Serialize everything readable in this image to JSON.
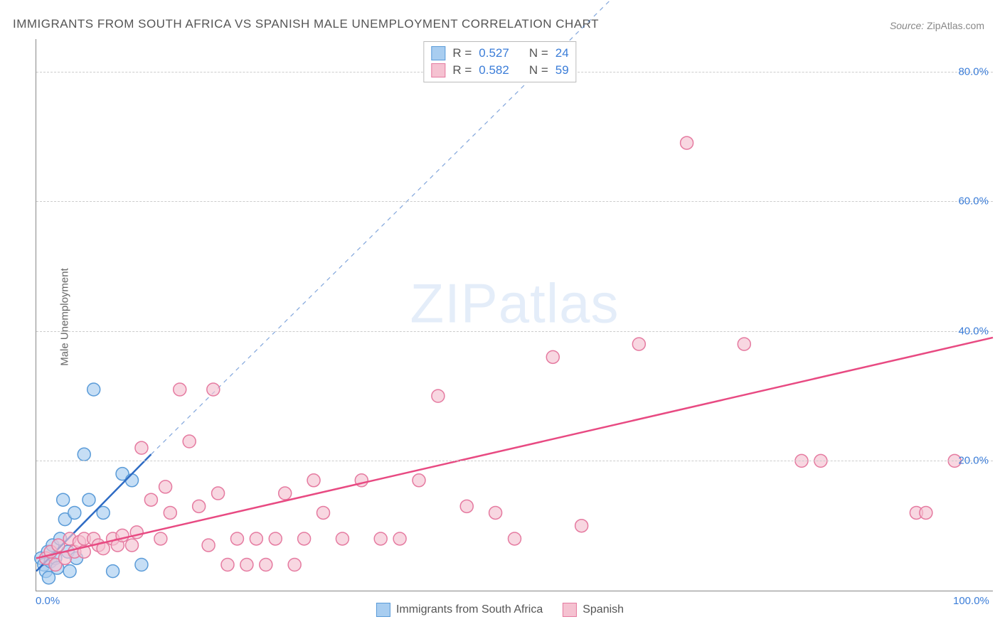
{
  "title": "IMMIGRANTS FROM SOUTH AFRICA VS SPANISH MALE UNEMPLOYMENT CORRELATION CHART",
  "source_label": "Source:",
  "source_value": "ZipAtlas.com",
  "y_axis_label": "Male Unemployment",
  "watermark_a": "ZIP",
  "watermark_b": "atlas",
  "chart": {
    "type": "scatter",
    "xlim": [
      0,
      100
    ],
    "ylim": [
      0,
      85
    ],
    "x_ticks": [
      {
        "v": 0,
        "label": "0.0%"
      },
      {
        "v": 100,
        "label": "100.0%"
      }
    ],
    "y_ticks": [
      {
        "v": 20,
        "label": "20.0%"
      },
      {
        "v": 40,
        "label": "40.0%"
      },
      {
        "v": 60,
        "label": "60.0%"
      },
      {
        "v": 80,
        "label": "80.0%"
      }
    ],
    "background_color": "#ffffff",
    "grid_color": "#cccccc",
    "grid_dash": true,
    "series": [
      {
        "id": "south_africa",
        "label": "Immigrants from South Africa",
        "color_fill": "#a8cdf0",
        "color_stroke": "#5a9bd8",
        "opacity": 0.65,
        "marker_radius": 9,
        "R": "0.527",
        "N": "24",
        "regression": {
          "x1": 0,
          "y1": 3,
          "x2": 12,
          "y2": 21,
          "dash_extend_x": 60,
          "dash_extend_y": 91,
          "color": "#2e6bc4",
          "width": 2.5
        },
        "points": [
          [
            0.5,
            5
          ],
          [
            0.8,
            4
          ],
          [
            1,
            3
          ],
          [
            1.2,
            6
          ],
          [
            1.3,
            2
          ],
          [
            1.5,
            4.5
          ],
          [
            1.7,
            7
          ],
          [
            2,
            5
          ],
          [
            2.2,
            3.5
          ],
          [
            2.5,
            8
          ],
          [
            2.8,
            14
          ],
          [
            3,
            11
          ],
          [
            3.3,
            6
          ],
          [
            3.5,
            3
          ],
          [
            4,
            12
          ],
          [
            4.2,
            5
          ],
          [
            5,
            21
          ],
          [
            5.5,
            14
          ],
          [
            6,
            31
          ],
          [
            7,
            12
          ],
          [
            8,
            3
          ],
          [
            9,
            18
          ],
          [
            10,
            17
          ],
          [
            11,
            4
          ]
        ]
      },
      {
        "id": "spanish",
        "label": "Spanish",
        "color_fill": "#f5c2d1",
        "color_stroke": "#e57aa0",
        "opacity": 0.65,
        "marker_radius": 9,
        "R": "0.582",
        "N": "59",
        "regression": {
          "x1": 0,
          "y1": 5,
          "x2": 100,
          "y2": 39,
          "color": "#e84a82",
          "width": 2.5
        },
        "points": [
          [
            1,
            5
          ],
          [
            1.5,
            6
          ],
          [
            2,
            4
          ],
          [
            2.3,
            7
          ],
          [
            3,
            5
          ],
          [
            3.5,
            8
          ],
          [
            4,
            6
          ],
          [
            4.5,
            7.5
          ],
          [
            5,
            6
          ],
          [
            5,
            8
          ],
          [
            6,
            8
          ],
          [
            6.5,
            7
          ],
          [
            7,
            6.5
          ],
          [
            8,
            8
          ],
          [
            8.5,
            7
          ],
          [
            9,
            8.5
          ],
          [
            10,
            7
          ],
          [
            10.5,
            9
          ],
          [
            11,
            22
          ],
          [
            12,
            14
          ],
          [
            13,
            8
          ],
          [
            13.5,
            16
          ],
          [
            14,
            12
          ],
          [
            15,
            31
          ],
          [
            16,
            23
          ],
          [
            17,
            13
          ],
          [
            18,
            7
          ],
          [
            18.5,
            31
          ],
          [
            19,
            15
          ],
          [
            20,
            4
          ],
          [
            21,
            8
          ],
          [
            22,
            4
          ],
          [
            23,
            8
          ],
          [
            24,
            4
          ],
          [
            25,
            8
          ],
          [
            26,
            15
          ],
          [
            27,
            4
          ],
          [
            28,
            8
          ],
          [
            29,
            17
          ],
          [
            30,
            12
          ],
          [
            32,
            8
          ],
          [
            34,
            17
          ],
          [
            36,
            8
          ],
          [
            38,
            8
          ],
          [
            40,
            17
          ],
          [
            42,
            30
          ],
          [
            45,
            13
          ],
          [
            48,
            12
          ],
          [
            50,
            8
          ],
          [
            54,
            36
          ],
          [
            57,
            10
          ],
          [
            63,
            38
          ],
          [
            68,
            69
          ],
          [
            74,
            38
          ],
          [
            80,
            20
          ],
          [
            82,
            20
          ],
          [
            92,
            12
          ],
          [
            93,
            12
          ],
          [
            96,
            20
          ]
        ]
      }
    ]
  },
  "stats_box_labels": {
    "R": "R",
    "N": "N",
    "eq": "="
  },
  "legend": [
    {
      "label": "Immigrants from South Africa",
      "fill": "#a8cdf0",
      "stroke": "#5a9bd8"
    },
    {
      "label": "Spanish",
      "fill": "#f5c2d1",
      "stroke": "#e57aa0"
    }
  ]
}
